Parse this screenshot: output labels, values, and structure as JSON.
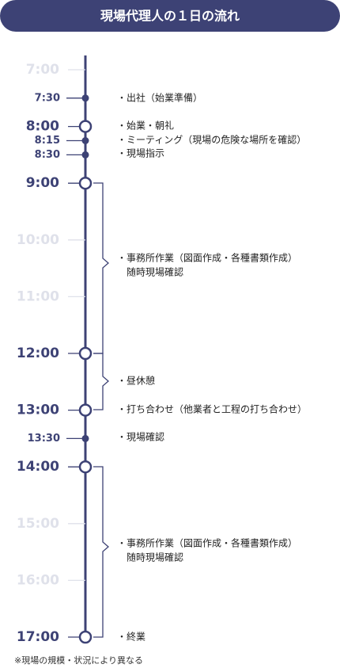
{
  "title": "現場代理人の１日の流れ",
  "times": [
    "7:00",
    "7:30",
    "8:00",
    "8:15",
    "8:30",
    "9:00",
    "10:00",
    "11:00",
    "12:00",
    "13:00",
    "13:30",
    "14:00",
    "15:00",
    "16:00",
    "17:00"
  ],
  "events": [
    {
      "lines": [
        "・出社（始業準備）"
      ]
    },
    {
      "lines": [
        "・始業・朝礼"
      ]
    },
    {
      "lines": [
        "・ミーティング（現場の危険な場所を確認）"
      ]
    },
    {
      "lines": [
        "・現場指示"
      ]
    },
    {
      "lines": [
        "・事務所作業（図面作成・各種書類作成）",
        "随時現場確認"
      ]
    },
    {
      "lines": [
        "・昼休憩"
      ]
    },
    {
      "lines": [
        "・打ち合わせ（他業者と工程の打ち合わせ）"
      ]
    },
    {
      "lines": [
        "・現場確認"
      ]
    },
    {
      "lines": [
        "・事務所作業（図面作成・各種書類作成）",
        "随時現場確認"
      ]
    },
    {
      "lines": [
        "・終業"
      ]
    }
  ],
  "note": "※現場の規模・状況により異なる"
}
